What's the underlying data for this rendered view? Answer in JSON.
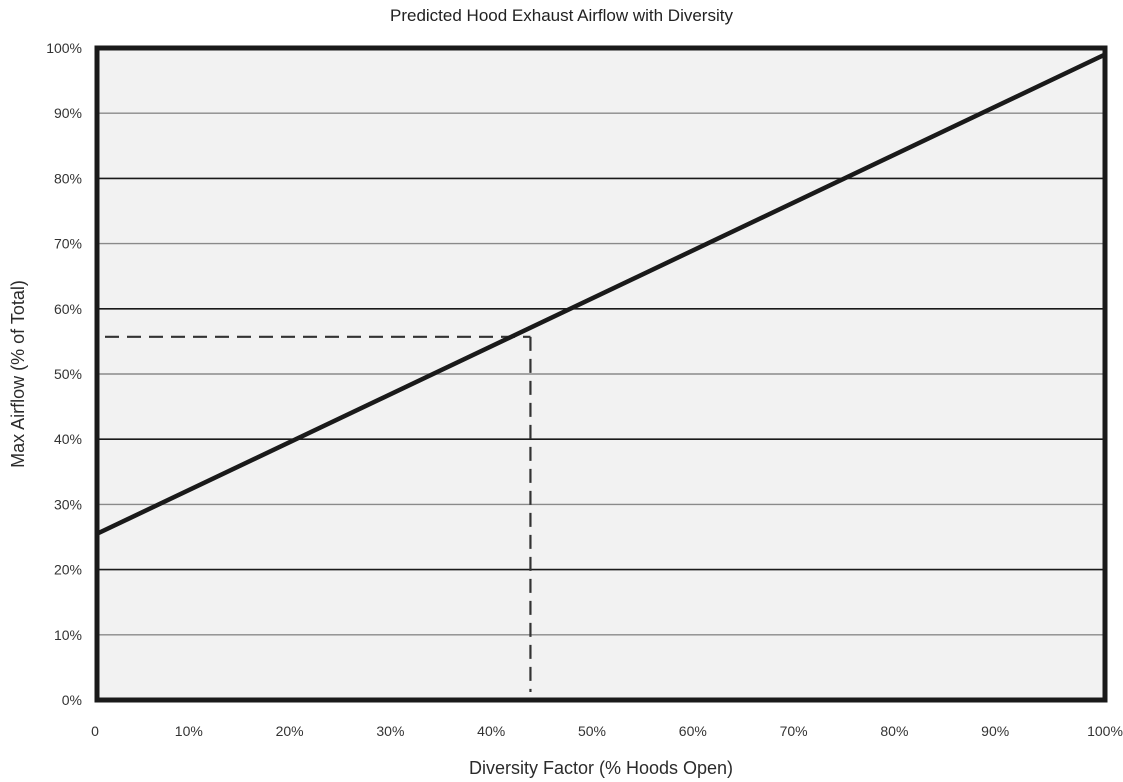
{
  "chart_data": {
    "type": "line",
    "title": "Predicted Hood Exhaust Airflow with Diversity",
    "xlabel": "Diversity Factor (% Hoods Open)",
    "ylabel": "Max Airflow (% of Total)",
    "x_ticks": [
      "0",
      "10%",
      "20%",
      "30%",
      "40%",
      "50%",
      "60%",
      "70%",
      "80%",
      "90%",
      "100%"
    ],
    "y_ticks": [
      "0%",
      "10%",
      "20%",
      "30%",
      "40%",
      "50%",
      "60%",
      "70%",
      "80%",
      "90%",
      "100%"
    ],
    "xlim": [
      0,
      100
    ],
    "ylim": [
      0,
      100
    ],
    "grid": "horizontal",
    "series": [
      {
        "x": [
          0,
          100
        ],
        "y": [
          25.5,
          99
        ]
      }
    ],
    "reference_point": {
      "x": 43,
      "y": 55.7
    },
    "colors": {
      "line": "#1a1a1a",
      "plot_bg": "#f2f2f2",
      "grid_major": "#1a1a1a",
      "grid_minor": "#8a8a8a"
    }
  }
}
